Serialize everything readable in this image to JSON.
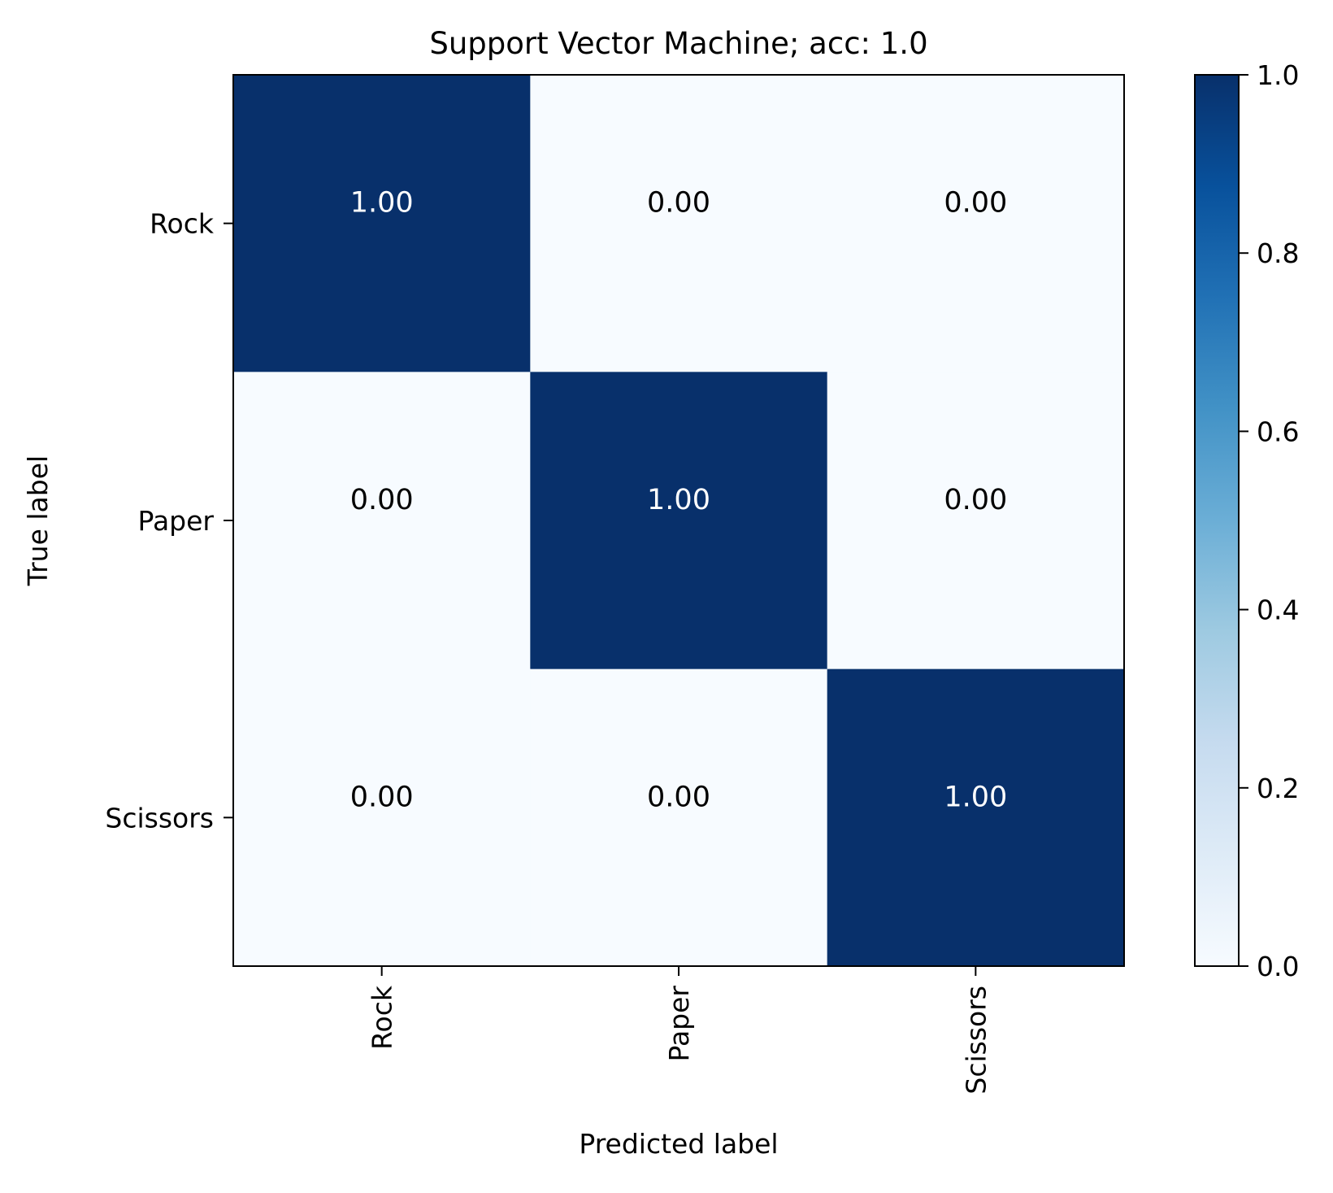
{
  "chart_data": {
    "type": "heatmap",
    "title": "Support Vector Machine; acc: 1.0",
    "xlabel": "Predicted label",
    "ylabel": "True label",
    "x_categories": [
      "Rock",
      "Paper",
      "Scissors"
    ],
    "y_categories": [
      "Rock",
      "Paper",
      "Scissors"
    ],
    "values": [
      [
        1.0,
        0.0,
        0.0
      ],
      [
        0.0,
        1.0,
        0.0
      ],
      [
        0.0,
        0.0,
        1.0
      ]
    ],
    "cell_labels": [
      [
        "1.00",
        "0.00",
        "0.00"
      ],
      [
        "0.00",
        "1.00",
        "0.00"
      ],
      [
        "0.00",
        "0.00",
        "1.00"
      ]
    ],
    "colormap": "Blues",
    "color_low": "#f7fbff",
    "color_high": "#08306b",
    "text_light": "#ffffff",
    "text_dark": "#000000",
    "colorbar": {
      "range": [
        0.0,
        1.0
      ],
      "ticks": [
        0.0,
        0.2,
        0.4,
        0.6,
        0.8,
        1.0
      ],
      "tick_labels": [
        "0.0",
        "0.2",
        "0.4",
        "0.6",
        "0.8",
        "1.0"
      ]
    }
  }
}
